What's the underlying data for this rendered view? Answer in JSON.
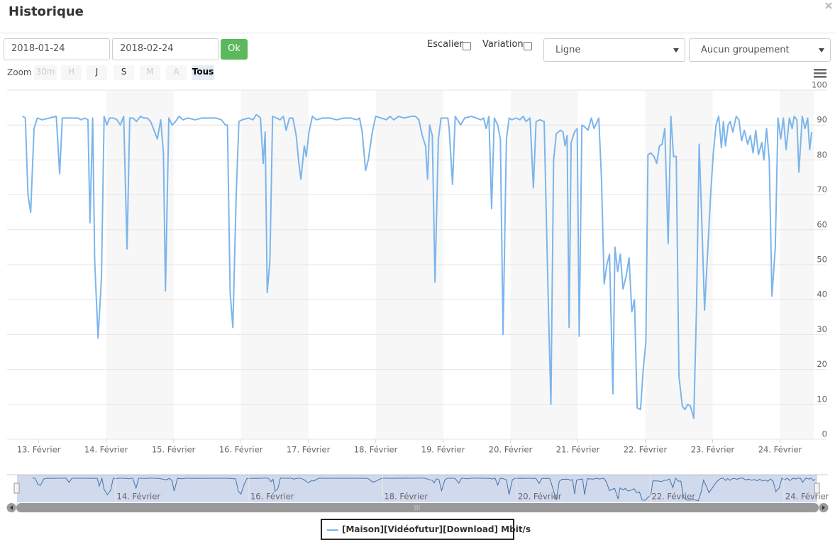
{
  "header": {
    "title": "Historique"
  },
  "controls": {
    "start_date": "2018-01-24",
    "end_date": "2018-02-24",
    "ok": "Ok",
    "stairs": "Escalier",
    "variation": "Variation",
    "chart_style": "Ligne",
    "grouping": "Aucun groupement"
  },
  "zoom": {
    "label": "Zoom",
    "buttons": [
      "30m",
      "H",
      "J",
      "S",
      "M",
      "A",
      "Tous"
    ]
  },
  "chart_data": {
    "type": "line",
    "grid": true,
    "x": [
      12.76,
      12.8,
      12.84,
      12.88,
      12.93,
      12.98,
      13.05,
      13.16,
      13.26,
      13.31,
      13.35,
      13.47,
      13.58,
      13.63,
      13.68,
      13.73,
      13.76,
      13.8,
      13.83,
      13.88,
      13.93,
      13.97,
      14.01,
      14.05,
      14.11,
      14.16,
      14.21,
      14.26,
      14.31,
      14.35,
      14.4,
      14.45,
      14.51,
      14.56,
      14.61,
      14.66,
      14.72,
      14.76,
      14.81,
      14.85,
      14.88,
      14.93,
      14.98,
      15.03,
      15.08,
      15.14,
      15.21,
      15.32,
      15.42,
      15.53,
      15.63,
      15.71,
      15.77,
      15.8,
      15.84,
      15.88,
      15.93,
      15.97,
      16.02,
      16.11,
      16.18,
      16.23,
      16.29,
      16.33,
      16.36,
      16.39,
      16.43,
      16.47,
      16.53,
      16.58,
      16.63,
      16.67,
      16.72,
      16.77,
      16.82,
      16.86,
      16.89,
      16.94,
      16.97,
      17.01,
      17.06,
      17.12,
      17.21,
      17.32,
      17.42,
      17.53,
      17.63,
      17.72,
      17.76,
      17.8,
      17.85,
      17.89,
      17.95,
      18.0,
      18.08,
      18.16,
      18.21,
      18.27,
      18.34,
      18.42,
      18.53,
      18.59,
      18.64,
      18.69,
      18.74,
      18.77,
      18.8,
      18.84,
      18.88,
      18.93,
      18.97,
      19.07,
      19.09,
      19.14,
      19.18,
      19.26,
      19.32,
      19.42,
      19.49,
      19.56,
      19.6,
      19.64,
      19.68,
      19.72,
      19.76,
      19.81,
      19.85,
      19.89,
      19.94,
      19.98,
      20.02,
      20.08,
      20.14,
      20.19,
      20.23,
      20.29,
      20.34,
      20.38,
      20.44,
      20.5,
      20.56,
      20.6,
      20.64,
      20.68,
      20.74,
      20.78,
      20.81,
      20.84,
      20.87,
      20.9,
      20.95,
      20.99,
      21.02,
      21.06,
      21.1,
      21.15,
      21.2,
      21.24,
      21.31,
      21.35,
      21.39,
      21.43,
      21.47,
      21.52,
      21.55,
      21.59,
      21.63,
      21.67,
      21.72,
      21.76,
      21.8,
      21.84,
      21.88,
      21.93,
      21.97,
      22.01,
      22.04,
      22.08,
      22.13,
      22.17,
      22.21,
      22.25,
      22.29,
      22.34,
      22.38,
      22.42,
      22.46,
      22.5,
      22.55,
      22.59,
      22.63,
      22.67,
      22.72,
      22.76,
      22.8,
      22.84,
      22.88,
      22.93,
      22.97,
      23.01,
      23.05,
      23.09,
      23.13,
      23.16,
      23.19,
      23.23,
      23.26,
      23.3,
      23.35,
      23.39,
      23.43,
      23.47,
      23.52,
      23.56,
      23.6,
      23.64,
      23.68,
      23.73,
      23.76,
      23.8,
      23.84,
      23.88,
      23.93,
      23.97,
      24.01,
      24.05,
      24.09,
      24.14,
      24.18,
      24.21,
      24.25,
      24.28,
      24.33,
      24.37,
      24.41,
      24.44,
      24.47
    ],
    "series": [
      {
        "name": "[Maison][Vidéofutur][Download] Mbit/s",
        "color": "#7cb5ec",
        "values": [
          92.5,
          92,
          70,
          65,
          89,
          92,
          91.5,
          92,
          92.5,
          76,
          92,
          92,
          92,
          91.5,
          92,
          91.5,
          62,
          92,
          51,
          29,
          46,
          92.5,
          90,
          92,
          92,
          91.5,
          90,
          92.5,
          54.5,
          92,
          92,
          91,
          92.5,
          92,
          92,
          91,
          88,
          86,
          91.5,
          82,
          42.5,
          92,
          90,
          91,
          92.5,
          91.5,
          92,
          91.5,
          92,
          92,
          92,
          91.5,
          90,
          90,
          42,
          32,
          70,
          91,
          91.5,
          92,
          91.5,
          93,
          92,
          79,
          88,
          42,
          51,
          92.5,
          92,
          91.5,
          92.5,
          88.5,
          92,
          92,
          87,
          79,
          74.5,
          84,
          81,
          88,
          92.5,
          91.5,
          92,
          92,
          91.5,
          92,
          92,
          91.5,
          92,
          88,
          77,
          80,
          88,
          92.5,
          92,
          91.5,
          92.5,
          91.5,
          92.5,
          92,
          92.5,
          92.5,
          91.5,
          87,
          84,
          74.5,
          90,
          87,
          45,
          86,
          92,
          92,
          89,
          73,
          92.5,
          90,
          92,
          92.5,
          92,
          91.5,
          92,
          89,
          92.5,
          66,
          92,
          90,
          86,
          30,
          86,
          92,
          91.5,
          92,
          91.5,
          92.5,
          91,
          92,
          72,
          91,
          91.5,
          91,
          40,
          10,
          80,
          87.5,
          88.5,
          88,
          84,
          87,
          32,
          85,
          88,
          89,
          29.5,
          90,
          89.5,
          88.5,
          92,
          89,
          92,
          75,
          44.5,
          50,
          53,
          13,
          55,
          48,
          53,
          43,
          47,
          52,
          36.5,
          40,
          9,
          8.5,
          20,
          28,
          81.5,
          82,
          81,
          79,
          84,
          84.5,
          89,
          56,
          92.5,
          81,
          81,
          18,
          9.5,
          8.5,
          10,
          9.5,
          6,
          37,
          84.5,
          62,
          37,
          55,
          70,
          82,
          90,
          92.5,
          83.5,
          91,
          84,
          90,
          91,
          88,
          92.5,
          91.5,
          85.5,
          88.5,
          84.5,
          87,
          82,
          88.5,
          81.5,
          85,
          80,
          89,
          80,
          41,
          55,
          92,
          86,
          92,
          83,
          92,
          89,
          92.5,
          91.5,
          76.5,
          92.5,
          89,
          92,
          83,
          88
        ]
      }
    ],
    "xlim": [
      12.53,
      24.5
    ],
    "xticks": [
      {
        "value": 13,
        "label": "13. Février"
      },
      {
        "value": 14,
        "label": "14. Février"
      },
      {
        "value": 15,
        "label": "15. Février"
      },
      {
        "value": 16,
        "label": "16. Février"
      },
      {
        "value": 17,
        "label": "17. Février"
      },
      {
        "value": 18,
        "label": "18. Février"
      },
      {
        "value": 19,
        "label": "19. Février"
      },
      {
        "value": 20,
        "label": "20. Février"
      },
      {
        "value": 21,
        "label": "21. Février"
      },
      {
        "value": 22,
        "label": "22. Février"
      },
      {
        "value": 23,
        "label": "23. Février"
      },
      {
        "value": 24,
        "label": "24. Février"
      }
    ],
    "ylim": [
      0,
      100
    ],
    "yticks": [
      0,
      10,
      20,
      30,
      40,
      50,
      60,
      70,
      80,
      90,
      100
    ]
  }
}
